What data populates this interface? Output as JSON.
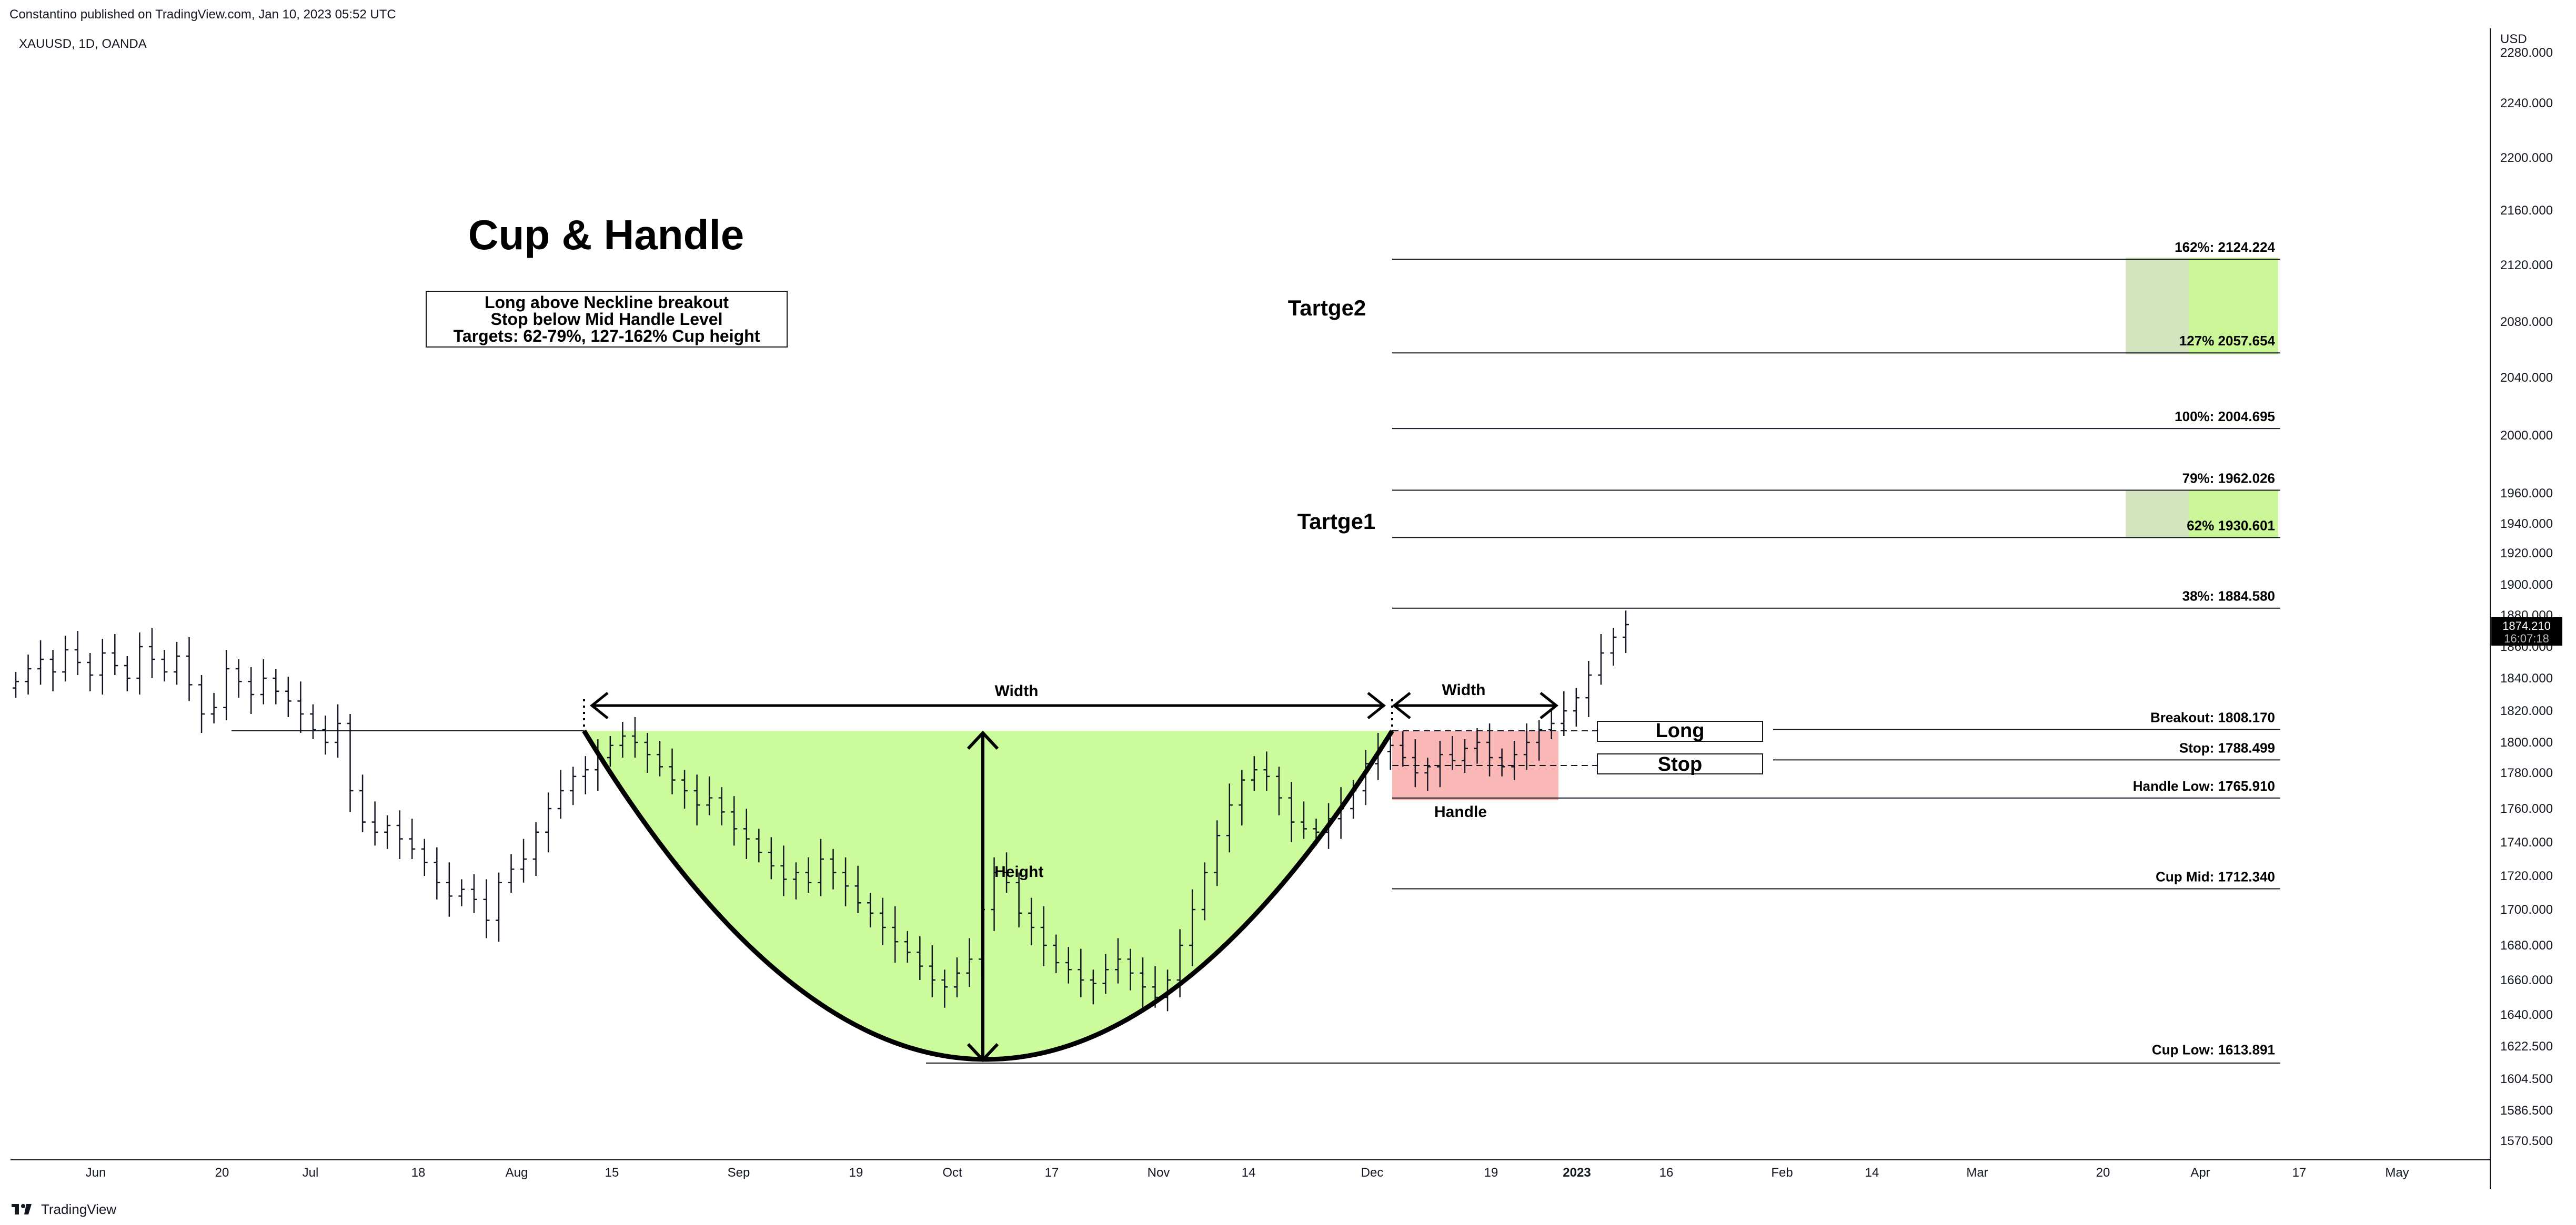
{
  "header": {
    "published": "Constantino published on TradingView.com, Jan 10, 2023 05:52 UTC"
  },
  "symbol": {
    "label": "XAUUSD, 1D, OANDA"
  },
  "footer": {
    "brand": "TradingView"
  },
  "colors": {
    "cup_fill": "#ccfb9b",
    "handle_fill": "#f9b7b5",
    "line": "#131722",
    "target_fill": "#b5f26b",
    "price_tag_bg": "#000000"
  },
  "chart_data": {
    "type": "candlestick",
    "currency": "USD",
    "title": "Cup & Handle",
    "subtitle_lines": [
      "Long above Neckline breakout",
      "Stop below Mid Handle Level",
      "Targets: 62-79%, 127-162% Cup height"
    ],
    "y_ticks": [
      "2280.000",
      "2240.000",
      "2200.000",
      "2160.000",
      "2120.000",
      "2080.000",
      "2040.000",
      "2000.000",
      "1960.000",
      "1940.000",
      "1920.000",
      "1900.000",
      "1880.000",
      "1860.000",
      "1840.000",
      "1820.000",
      "1800.000",
      "1780.000",
      "1760.000",
      "1740.000",
      "1720.000",
      "1700.000",
      "1680.000",
      "1660.000",
      "1640.000",
      "1622.500",
      "1604.500",
      "1586.500",
      "1570.500"
    ],
    "x_ticks": [
      "Jun",
      "20",
      "Jul",
      "18",
      "Aug",
      "15",
      "Sep",
      "19",
      "Oct",
      "17",
      "Nov",
      "14",
      "Dec",
      "19",
      "2023",
      "16",
      "Feb",
      "14",
      "Mar",
      "20",
      "Apr",
      "17",
      "May"
    ],
    "current_price": {
      "value": "1874.210",
      "countdown": "16:07:18"
    },
    "levels": [
      {
        "label": "162%: 2124.224",
        "value": 2124.224
      },
      {
        "label": "127% 2057.654",
        "value": 2057.654
      },
      {
        "label": "100%: 2004.695",
        "value": 2004.695
      },
      {
        "label": "79%: 1962.026",
        "value": 1962.026
      },
      {
        "label": "62% 1930.601",
        "value": 1930.601
      },
      {
        "label": "38%: 1884.580",
        "value": 1884.58
      },
      {
        "label": "Breakout: 1808.170",
        "value": 1808.17
      },
      {
        "label": "Stop: 1788.499",
        "value": 1788.499
      },
      {
        "label": "Handle Low: 1765.910",
        "value": 1765.91
      },
      {
        "label": "Cup Mid: 1712.340",
        "value": 1712.34
      },
      {
        "label": "Cup Low: 1613.891",
        "value": 1613.891
      }
    ],
    "annotations": {
      "target2": "Tartge2",
      "target1": "Tartge1",
      "width_cup": "Width",
      "width_handle": "Width",
      "height": "Height",
      "handle": "Handle",
      "long": "Long",
      "stop": "Stop"
    },
    "candles_close": [
      1838,
      1846,
      1852,
      1844,
      1858,
      1850,
      1842,
      1856,
      1848,
      1840,
      1860,
      1852,
      1844,
      1854,
      1836,
      1818,
      1822,
      1846,
      1838,
      1830,
      1840,
      1832,
      1826,
      1818,
      1808,
      1800,
      1812,
      1770,
      1752,
      1746,
      1750,
      1742,
      1736,
      1728,
      1716,
      1708,
      1712,
      1706,
      1694,
      1716,
      1724,
      1730,
      1746,
      1760,
      1770,
      1778,
      1782,
      1790,
      1798,
      1804,
      1800,
      1792,
      1784,
      1776,
      1770,
      1762,
      1766,
      1758,
      1748,
      1742,
      1734,
      1726,
      1718,
      1722,
      1716,
      1730,
      1722,
      1714,
      1704,
      1698,
      1690,
      1682,
      1676,
      1668,
      1660,
      1656,
      1664,
      1672,
      1700,
      1722,
      1716,
      1698,
      1690,
      1680,
      1670,
      1666,
      1660,
      1658,
      1666,
      1672,
      1664,
      1656,
      1650,
      1660,
      1680,
      1700,
      1722,
      1744,
      1762,
      1776,
      1782,
      1778,
      1766,
      1752,
      1748,
      1746,
      1754,
      1760,
      1770,
      1786,
      1794,
      1798,
      1790,
      1780,
      1784,
      1792,
      1788,
      1796,
      1800,
      1790,
      1784,
      1792,
      1800,
      1808,
      1812,
      1820,
      1828,
      1842,
      1856,
      1866,
      1874
    ]
  }
}
